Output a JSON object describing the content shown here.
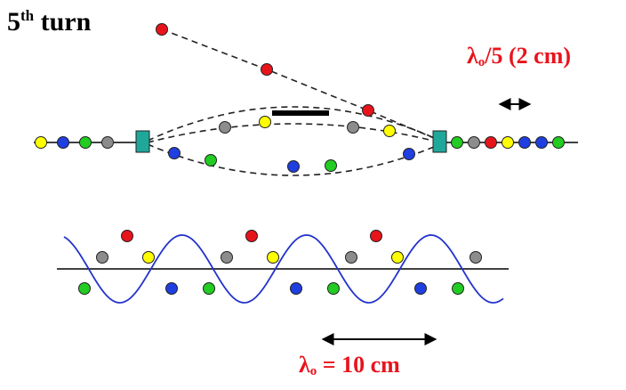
{
  "title": {
    "number": "5",
    "suffix": "th",
    "word": "turn"
  },
  "labels": {
    "top_symbol": "λ",
    "top_sub": "o",
    "top_text": "/5 (2 cm)",
    "bottom_symbol": "λ",
    "bottom_sub": "o",
    "bottom_text": " = 10 cm"
  },
  "colors": {
    "yellow": "#ffff00",
    "blue": "#1f3fe0",
    "green": "#22cc22",
    "gray": "#8c8c8c",
    "red": "#e8141c",
    "teal": "#1fa89a",
    "wave": "#2233cc",
    "label_red": "#e8141c"
  },
  "left_chain_colors": [
    "yellow",
    "blue",
    "green",
    "gray"
  ],
  "right_chain_colors": [
    "green",
    "gray",
    "red",
    "yellow",
    "blue",
    "blue",
    "green"
  ],
  "wave_cycle_colors": [
    "green",
    "gray",
    "red",
    "yellow",
    "blue"
  ]
}
